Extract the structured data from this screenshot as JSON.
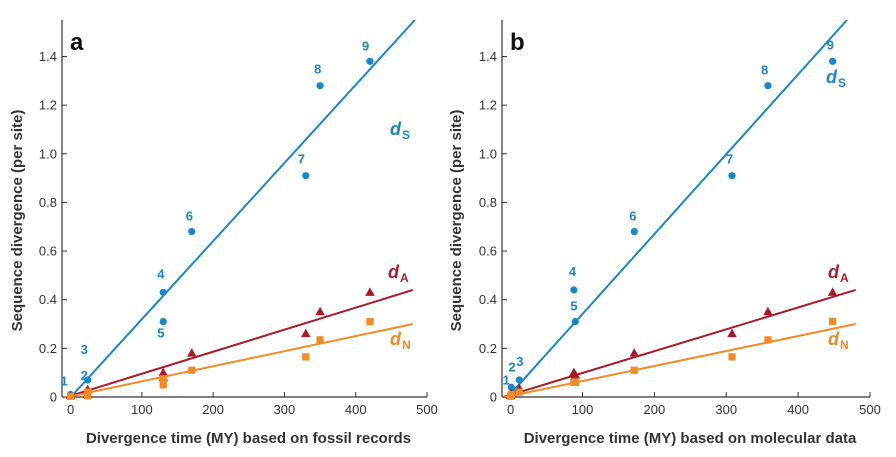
{
  "colors": {
    "dS": "#1a86c7",
    "dA": "#a81a27",
    "dN": "#f28a25"
  },
  "chart_data": [
    {
      "type": "scatter",
      "panel": "a",
      "xlabel": "Divergence time (MY) based on fossil records",
      "ylabel": "Sequence divergence (per site)",
      "xlim": [
        -12,
        500
      ],
      "ylim": [
        0,
        1.55
      ],
      "xticks": [
        0,
        100,
        200,
        300,
        400,
        500
      ],
      "yticks": [
        0,
        0.2,
        0.4,
        0.6,
        0.8,
        1.0,
        1.2,
        1.4
      ],
      "yticklabels": [
        "0",
        "0.2",
        "0.4",
        "0.6",
        "0.8",
        "1.0",
        "1.2",
        "1.4"
      ],
      "series": [
        {
          "key": "dS",
          "label": "d",
          "sub": "S",
          "marker": "circle",
          "x": [
            0,
            24,
            24,
            130,
            130,
            170,
            330,
            350,
            420
          ],
          "y": [
            0.01,
            0.02,
            0.07,
            0.43,
            0.31,
            0.68,
            0.91,
            1.28,
            1.38
          ],
          "point_labels": [
            "1",
            "2",
            "3",
            "4",
            "5",
            "6",
            "7",
            "8",
            "9"
          ],
          "fit": [
            [
              -12,
              -0.04
            ],
            [
              483,
              1.55
            ]
          ]
        },
        {
          "key": "dA",
          "label": "d",
          "sub": "A",
          "marker": "triangle",
          "x": [
            0,
            24,
            24,
            130,
            130,
            170,
            330,
            350,
            420
          ],
          "y": [
            0.005,
            0.01,
            0.03,
            0.08,
            0.1,
            0.18,
            0.26,
            0.35,
            0.43
          ],
          "fit": [
            [
              -12,
              -0.006
            ],
            [
              480,
              0.44
            ]
          ]
        },
        {
          "key": "dN",
          "label": "d",
          "sub": "N",
          "marker": "square",
          "x": [
            0,
            24,
            24,
            130,
            130,
            170,
            330,
            350,
            420
          ],
          "y": [
            0.003,
            0.005,
            0.02,
            0.05,
            0.075,
            0.11,
            0.165,
            0.235,
            0.31
          ],
          "fit": [
            [
              -12,
              -0.005
            ],
            [
              480,
              0.3
            ]
          ]
        }
      ]
    },
    {
      "type": "scatter",
      "panel": "b",
      "xlabel": "Divergence time (MY) based on molecular data",
      "ylabel": "Sequence divergence (per site)",
      "xlim": [
        -12,
        500
      ],
      "ylim": [
        0,
        1.55
      ],
      "xticks": [
        0,
        100,
        200,
        300,
        400,
        500
      ],
      "yticks": [
        0,
        0.2,
        0.4,
        0.6,
        0.8,
        1.0,
        1.2,
        1.4
      ],
      "yticklabels": [
        "0",
        "0.2",
        "0.4",
        "0.6",
        "0.8",
        "1.0",
        "1.2",
        "1.4"
      ],
      "series": [
        {
          "key": "dS",
          "label": "d",
          "sub": "S",
          "marker": "circle",
          "x": [
            0,
            1,
            12,
            88,
            90,
            172,
            308,
            358,
            448
          ],
          "y": [
            0.01,
            0.04,
            0.07,
            0.44,
            0.31,
            0.68,
            0.91,
            1.28,
            1.38
          ],
          "point_labels": [
            "1",
            "2",
            "3",
            "4",
            "5",
            "6",
            "7",
            "8",
            "9"
          ],
          "fit": [
            [
              -10,
              -0.02
            ],
            [
              468,
              1.55
            ]
          ]
        },
        {
          "key": "dA",
          "label": "d",
          "sub": "A",
          "marker": "triangle",
          "x": [
            0,
            1,
            12,
            88,
            90,
            172,
            308,
            358,
            448
          ],
          "y": [
            0.005,
            0.015,
            0.035,
            0.1,
            0.09,
            0.18,
            0.26,
            0.35,
            0.43
          ],
          "fit": [
            [
              -10,
              0.0
            ],
            [
              480,
              0.44
            ]
          ]
        },
        {
          "key": "dN",
          "label": "d",
          "sub": "N",
          "marker": "square",
          "x": [
            0,
            1,
            12,
            88,
            90,
            172,
            308,
            358,
            448
          ],
          "y": [
            0.003,
            0.01,
            0.02,
            0.06,
            0.06,
            0.11,
            0.165,
            0.235,
            0.31
          ],
          "fit": [
            [
              -10,
              -0.002
            ],
            [
              480,
              0.3
            ]
          ]
        }
      ]
    }
  ]
}
